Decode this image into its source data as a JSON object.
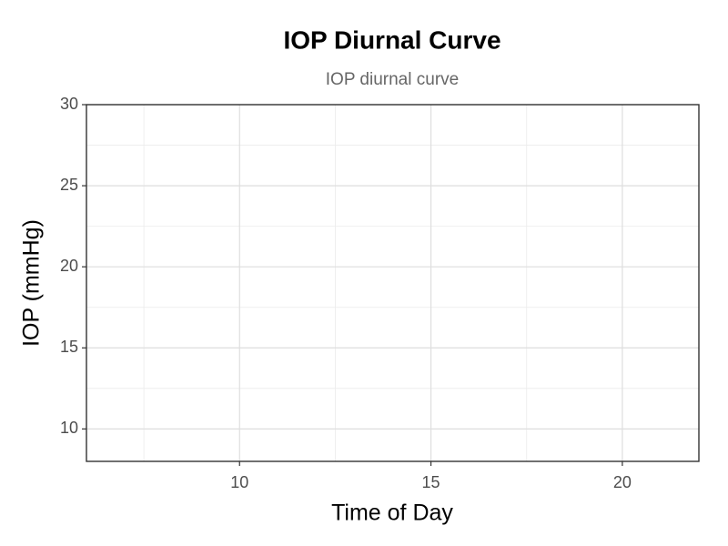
{
  "chart_data": {
    "type": "line",
    "title": "IOP Diurnal Curve",
    "subtitle": "IOP diurnal curve",
    "xlabel": "Time of Day",
    "ylabel": "IOP (mmHg)",
    "series": [],
    "xlim": [
      6,
      22
    ],
    "xticks": [
      10,
      15,
      20
    ],
    "xminor": [
      7.5,
      12.5,
      17.5
    ],
    "ylim": [
      8,
      30
    ],
    "yticks": [
      10,
      15,
      20,
      25,
      30
    ],
    "yminor": [
      12.5,
      17.5,
      22.5,
      27.5
    ],
    "grid": true
  }
}
